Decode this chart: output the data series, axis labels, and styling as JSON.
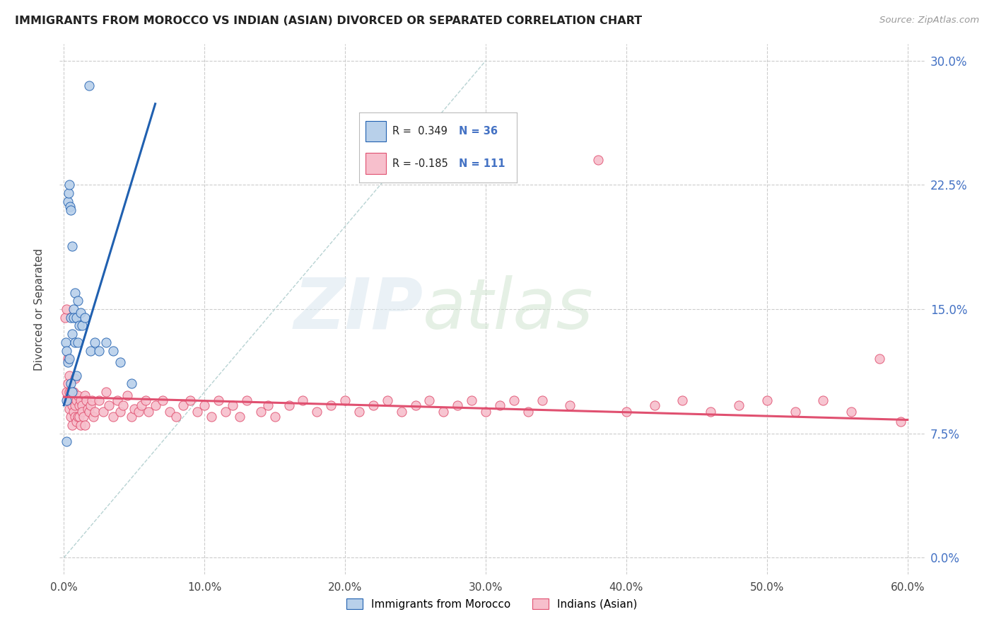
{
  "title": "IMMIGRANTS FROM MOROCCO VS INDIAN (ASIAN) DIVORCED OR SEPARATED CORRELATION CHART",
  "source": "Source: ZipAtlas.com",
  "ylabel_label": "Divorced or Separated",
  "legend_label1": "Immigrants from Morocco",
  "legend_label2": "Indians (Asian)",
  "r1": 0.349,
  "n1": 36,
  "r2": -0.185,
  "n2": 111,
  "color_morocco": "#b8d0ea",
  "color_indian": "#f7bfcc",
  "line_color_morocco": "#2060b0",
  "line_color_indian": "#e05070",
  "dashed_line_color": "#b0cece",
  "xlim": [
    0.0,
    0.6
  ],
  "ylim": [
    0.0,
    0.3
  ],
  "xtick_vals": [
    0.0,
    0.1,
    0.2,
    0.3,
    0.4,
    0.5,
    0.6
  ],
  "ytick_vals": [
    0.0,
    0.075,
    0.15,
    0.225,
    0.3
  ],
  "xtick_labels": [
    "0.0%",
    "10.0%",
    "20.0%",
    "30.0%",
    "40.0%",
    "50.0%",
    "60.0%"
  ],
  "ytick_labels": [
    "0.0%",
    "7.5%",
    "15.0%",
    "22.5%",
    "30.0%"
  ]
}
